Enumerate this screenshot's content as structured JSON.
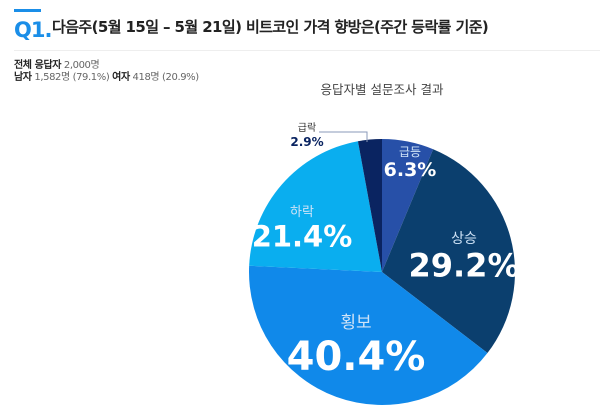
{
  "question": {
    "number": "Q1.",
    "title": "다음주(5월 15일 – 5월 21일)  비트코인 가격 향방은(주간 등락률 기준)"
  },
  "respondents": {
    "total_label": "전체 응답자",
    "total_value": "2,000명",
    "male_label": "남자",
    "male_value": "1,582명 (79.1%)",
    "female_label": "여자",
    "female_value": "418명 (20.9%)"
  },
  "chart_data": {
    "type": "pie",
    "title": "응답자별 설문조사 결과",
    "categories": [
      "급등",
      "상승",
      "횡보",
      "하락",
      "급락"
    ],
    "values": [
      6.3,
      29.2,
      40.4,
      21.4,
      2.9
    ],
    "labels": [
      "6.3%",
      "29.2%",
      "40.4%",
      "21.4%",
      "2.9%"
    ],
    "colors": [
      "#2750a8",
      "#0b3f6e",
      "#1089ea",
      "#0aaeef",
      "#0a2461"
    ],
    "start": "12 o'clock",
    "direction": "clockwise"
  }
}
